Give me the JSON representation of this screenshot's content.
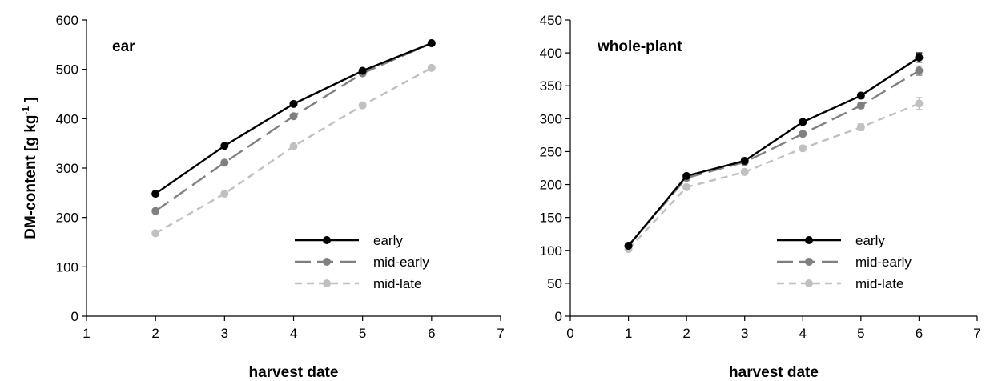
{
  "chart_data": [
    {
      "type": "line",
      "title": "ear",
      "xlabel": "harvest date",
      "ylabel": "DM-content [g kg",
      "ylabel_sup": "-1",
      "ylabel_end": "]",
      "xlim": [
        1,
        7
      ],
      "ylim": [
        0,
        600
      ],
      "xticks": [
        "1",
        "2",
        "3",
        "4",
        "5",
        "6",
        "7"
      ],
      "yticks": [
        "0",
        "100",
        "200",
        "300",
        "400",
        "500",
        "600"
      ],
      "x": [
        2,
        3,
        4,
        5,
        6
      ],
      "grid": false,
      "legend_position": "bottom-right",
      "series": [
        {
          "name": "early",
          "values": [
            248,
            345,
            430,
            497,
            553
          ],
          "color": "#000000",
          "dash": "solid"
        },
        {
          "name": "mid-early",
          "values": [
            213,
            311,
            405,
            492,
            553
          ],
          "color": "#808080",
          "dash": "long-dash"
        },
        {
          "name": "mid-late",
          "values": [
            168,
            248,
            344,
            427,
            503
          ],
          "color": "#c0c0c0",
          "dash": "short-dash"
        }
      ]
    },
    {
      "type": "line",
      "title": "whole-plant",
      "xlabel": "harvest date",
      "ylabel": "",
      "xlim": [
        0,
        7
      ],
      "ylim": [
        0,
        450
      ],
      "xticks": [
        "0",
        "1",
        "2",
        "3",
        "4",
        "5",
        "6",
        "7"
      ],
      "yticks": [
        "0",
        "50",
        "100",
        "150",
        "200",
        "250",
        "300",
        "350",
        "400",
        "450"
      ],
      "x": [
        1,
        2,
        3,
        4,
        5,
        6
      ],
      "grid": false,
      "legend_position": "bottom-right",
      "series": [
        {
          "name": "early",
          "values": [
            107,
            213,
            236,
            295,
            335,
            393
          ],
          "errors": [
            2,
            2,
            2,
            3,
            4,
            7
          ],
          "color": "#000000",
          "dash": "solid"
        },
        {
          "name": "mid-early",
          "values": [
            107,
            210,
            234,
            277,
            320,
            373
          ],
          "errors": [
            2,
            2,
            2,
            3,
            4,
            7
          ],
          "color": "#808080",
          "dash": "long-dash"
        },
        {
          "name": "mid-late",
          "values": [
            102,
            196,
            219,
            255,
            287,
            323
          ],
          "errors": [
            2,
            2,
            2,
            3,
            5,
            9
          ],
          "color": "#c0c0c0",
          "dash": "short-dash"
        }
      ]
    }
  ]
}
